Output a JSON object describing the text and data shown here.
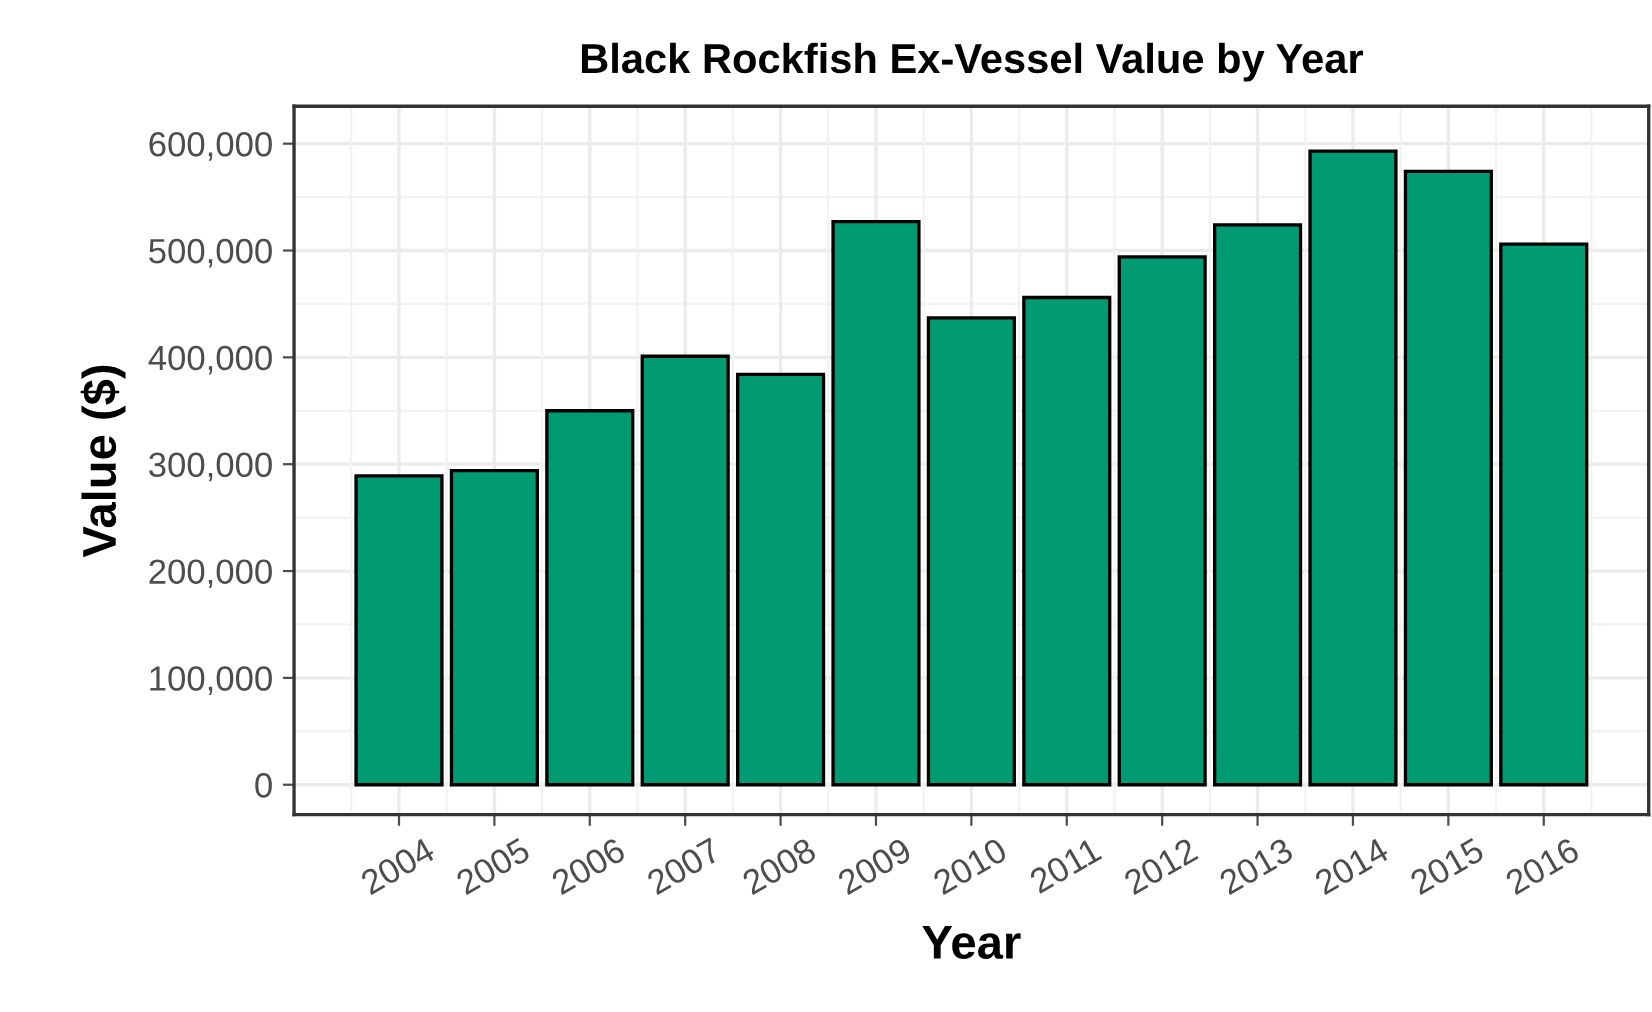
{
  "chart_data": {
    "type": "bar",
    "title": "Black Rockfish Ex-Vessel Value by Year",
    "xlabel": "Year",
    "ylabel": "Value ($)",
    "categories": [
      "2004",
      "2005",
      "2006",
      "2007",
      "2008",
      "2009",
      "2010",
      "2011",
      "2012",
      "2013",
      "2014",
      "2015",
      "2016"
    ],
    "values": [
      289000,
      294000,
      350000,
      401000,
      384000,
      527000,
      437000,
      456000,
      494000,
      524000,
      593000,
      574000,
      506000
    ],
    "color": "#009b72",
    "ylim": [
      -28000,
      635000
    ],
    "yticks": [
      {
        "value": 0,
        "label": "0"
      },
      {
        "value": 100000,
        "label": "100,000"
      },
      {
        "value": 200000,
        "label": "200,000"
      },
      {
        "value": 300000,
        "label": "300,000"
      },
      {
        "value": 400000,
        "label": "400,000"
      },
      {
        "value": 500000,
        "label": "500,000"
      },
      {
        "value": 600000,
        "label": "600,000"
      }
    ],
    "grid": true
  }
}
